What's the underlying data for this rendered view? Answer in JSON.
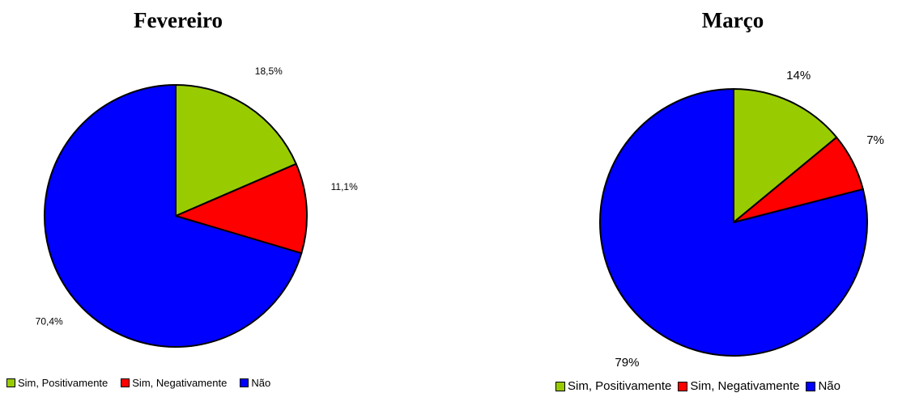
{
  "chart_data": [
    {
      "type": "pie",
      "title": "Fevereiro",
      "slices": [
        {
          "label": "Sim, Positivamente",
          "value": 18.5,
          "value_label": "18,5%",
          "color": "#99cc00"
        },
        {
          "label": "Sim, Negativamente",
          "value": 11.1,
          "value_label": "11,1%",
          "color": "#ff0000"
        },
        {
          "label": "Não",
          "value": 70.4,
          "value_label": "70,4%",
          "color": "#0000ff"
        }
      ],
      "legend_position": "bottom"
    },
    {
      "type": "pie",
      "title": "Março",
      "slices": [
        {
          "label": "Sim, Positivamente",
          "value": 14,
          "value_label": "14%",
          "color": "#99cc00"
        },
        {
          "label": "Sim, Negativamente",
          "value": 7,
          "value_label": "7%",
          "color": "#ff0000"
        },
        {
          "label": "Não",
          "value": 79,
          "value_label": "79%",
          "color": "#0000ff"
        }
      ],
      "legend_position": "bottom"
    }
  ]
}
